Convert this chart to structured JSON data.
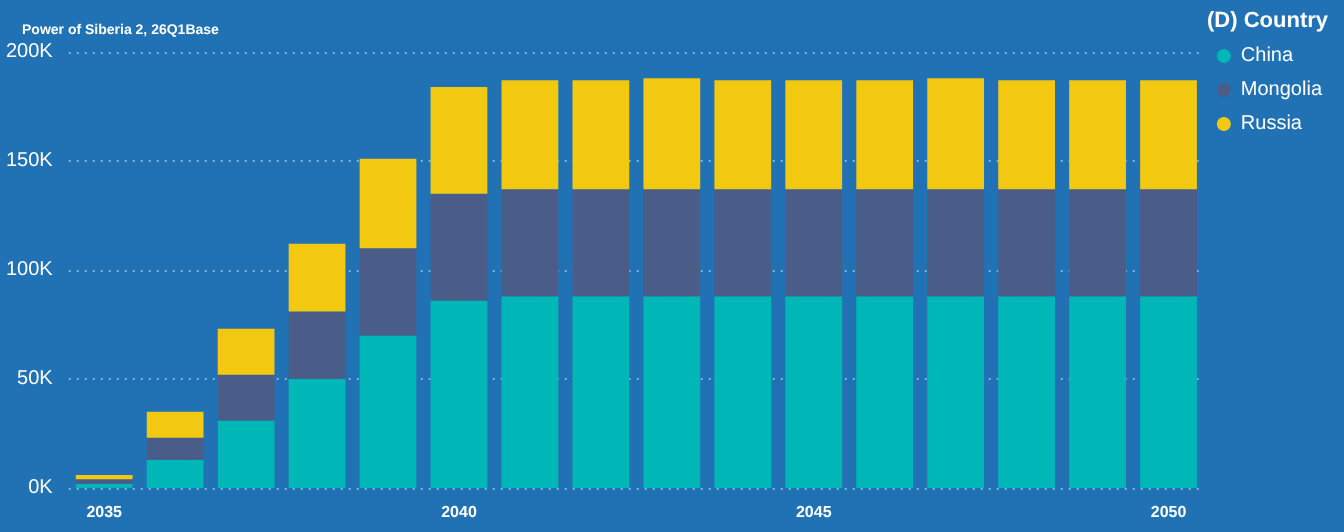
{
  "chart_data": {
    "type": "bar",
    "title": "Power of Siberia 2, 26Q1Base",
    "legend_title": "(D) Country",
    "categories": [
      "2035",
      null,
      null,
      null,
      null,
      "2040",
      null,
      null,
      null,
      null,
      "2045",
      null,
      null,
      null,
      null,
      "2050"
    ],
    "stacked": true,
    "series": [
      {
        "name": "China",
        "color": "#00b7b8",
        "values": [
          2,
          13,
          31,
          50,
          70,
          86,
          88,
          88,
          88,
          88,
          88,
          88,
          88,
          88,
          88,
          88
        ]
      },
      {
        "name": "Mongolia",
        "color": "#4a5c88",
        "values": [
          2,
          10,
          21,
          31,
          40,
          49,
          49,
          49,
          49,
          49,
          49,
          49,
          49,
          49,
          49,
          49
        ]
      },
      {
        "name": "Russia",
        "color": "#f2c811",
        "values": [
          2,
          12,
          21,
          31,
          41,
          49,
          50,
          50,
          51,
          50,
          50,
          50,
          51,
          50,
          50,
          50
        ]
      }
    ],
    "ylim": [
      0,
      200
    ],
    "yticks": [
      {
        "value": 0,
        "label": "0K"
      },
      {
        "value": 50,
        "label": "50K"
      },
      {
        "value": 100,
        "label": "100K"
      },
      {
        "value": 150,
        "label": "150K"
      },
      {
        "value": 200,
        "label": "200K"
      }
    ],
    "grid": "y",
    "legend": "top right"
  }
}
